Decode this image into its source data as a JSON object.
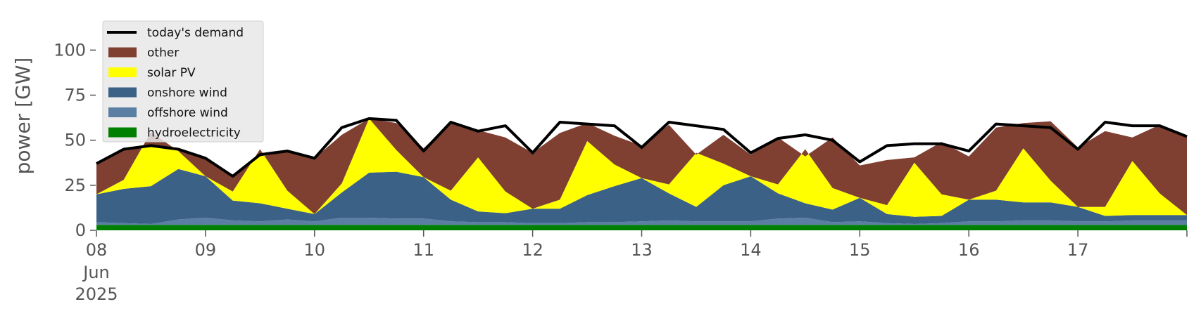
{
  "chart_data": {
    "type": "area",
    "title": "",
    "xlabel": "",
    "ylabel": "power [GW]",
    "ylim": [
      0,
      120
    ],
    "xlim": [
      "2025-06-08 00:00",
      "2025-06-18 00:00"
    ],
    "grid": false,
    "legend_position": "top-left",
    "y_ticks": [
      0,
      25,
      50,
      75,
      100
    ],
    "x_ticks": [
      {
        "date": "2025-06-08",
        "label": "08"
      },
      {
        "date": "2025-06-09",
        "label": "09"
      },
      {
        "date": "2025-06-10",
        "label": "10"
      },
      {
        "date": "2025-06-11",
        "label": "11"
      },
      {
        "date": "2025-06-12",
        "label": "12"
      },
      {
        "date": "2025-06-13",
        "label": "13"
      },
      {
        "date": "2025-06-14",
        "label": "14"
      },
      {
        "date": "2025-06-15",
        "label": "15"
      },
      {
        "date": "2025-06-16",
        "label": "16"
      },
      {
        "date": "2025-06-17",
        "label": "17"
      }
    ],
    "x_sublabels": [
      "Jun",
      "2025"
    ],
    "x": [
      "2025-06-08 00:00",
      "2025-06-08 06:00",
      "2025-06-08 12:00",
      "2025-06-08 18:00",
      "2025-06-09 00:00",
      "2025-06-09 06:00",
      "2025-06-09 12:00",
      "2025-06-09 18:00",
      "2025-06-10 00:00",
      "2025-06-10 06:00",
      "2025-06-10 12:00",
      "2025-06-10 18:00",
      "2025-06-11 00:00",
      "2025-06-11 06:00",
      "2025-06-11 12:00",
      "2025-06-11 18:00",
      "2025-06-12 00:00",
      "2025-06-12 06:00",
      "2025-06-12 12:00",
      "2025-06-12 18:00",
      "2025-06-13 00:00",
      "2025-06-13 06:00",
      "2025-06-13 12:00",
      "2025-06-13 18:00",
      "2025-06-14 00:00",
      "2025-06-14 06:00",
      "2025-06-14 12:00",
      "2025-06-14 18:00",
      "2025-06-15 00:00",
      "2025-06-15 06:00",
      "2025-06-15 12:00",
      "2025-06-15 18:00",
      "2025-06-16 00:00",
      "2025-06-16 06:00",
      "2025-06-16 12:00",
      "2025-06-16 18:00",
      "2025-06-17 00:00",
      "2025-06-17 06:00",
      "2025-06-17 12:00",
      "2025-06-17 18:00",
      "2025-06-18 00:00"
    ],
    "series": [
      {
        "name": "hydroelectricity",
        "color": "#008000",
        "values": [
          3,
          3,
          3,
          3,
          3,
          3,
          3,
          3,
          3,
          3,
          3,
          3,
          3,
          3,
          3,
          3,
          3,
          3,
          3,
          3,
          3,
          3,
          3,
          3,
          3,
          3,
          3,
          3,
          3,
          3,
          3,
          3,
          3,
          3,
          3,
          3,
          3,
          3,
          3,
          3,
          3
        ]
      },
      {
        "name": "offshore wind",
        "color": "#5b7fa3",
        "values": [
          1.5,
          1,
          0.5,
          3,
          4,
          2.5,
          2,
          3,
          2,
          4,
          4,
          3.5,
          3.5,
          2,
          1.5,
          1.5,
          1,
          1,
          1.5,
          1.5,
          2,
          2.5,
          2,
          2,
          2,
          3.5,
          4,
          1.5,
          2,
          1,
          0.5,
          1,
          2,
          2,
          2.5,
          2.5,
          2,
          2,
          2.5,
          2.5,
          2.5
        ]
      },
      {
        "name": "onshore wind",
        "color": "#3b6186",
        "values": [
          15.5,
          19,
          21,
          28,
          23,
          11,
          10,
          6,
          4,
          14,
          25,
          26,
          23,
          12,
          6,
          5,
          8,
          8,
          15,
          20,
          24,
          15,
          8,
          20,
          25,
          14,
          8,
          7,
          13,
          5,
          4,
          4,
          12,
          12,
          10,
          10,
          8,
          3,
          3,
          3,
          3
        ]
      },
      {
        "name": "solar PV",
        "color": "#ffff00",
        "values": [
          0,
          5,
          30,
          10,
          0,
          5,
          30,
          10,
          0,
          5,
          30,
          12,
          0,
          5,
          30,
          12,
          0,
          5,
          30,
          12,
          0,
          5,
          30,
          12,
          0,
          5,
          30,
          12,
          0,
          5,
          30,
          12,
          0,
          5,
          30,
          12,
          0,
          5,
          30,
          12,
          0
        ]
      },
      {
        "name": "other",
        "color": "#7f4032",
        "values": [
          17,
          17,
          -7,
          1,
          10,
          9,
          -4,
          22,
          31,
          27,
          0,
          15,
          16,
          38,
          15,
          30,
          31,
          37,
          10,
          16,
          18,
          33,
          -1,
          16,
          12,
          26,
          -4,
          28,
          18,
          25,
          3,
          29,
          24,
          35,
          14,
          33,
          33,
          42,
          13,
          38,
          44
        ]
      }
    ],
    "demand": {
      "name": "today's demand",
      "color": "#000000",
      "values": [
        37,
        45,
        47,
        45,
        40,
        30,
        42,
        44,
        40,
        57,
        62,
        61,
        44,
        60,
        55,
        58,
        43,
        60,
        59,
        58,
        46,
        60,
        58,
        56,
        43,
        51,
        53,
        50,
        38,
        47,
        48,
        48,
        44,
        59,
        58,
        57,
        45,
        60,
        58,
        58,
        52
      ]
    }
  }
}
